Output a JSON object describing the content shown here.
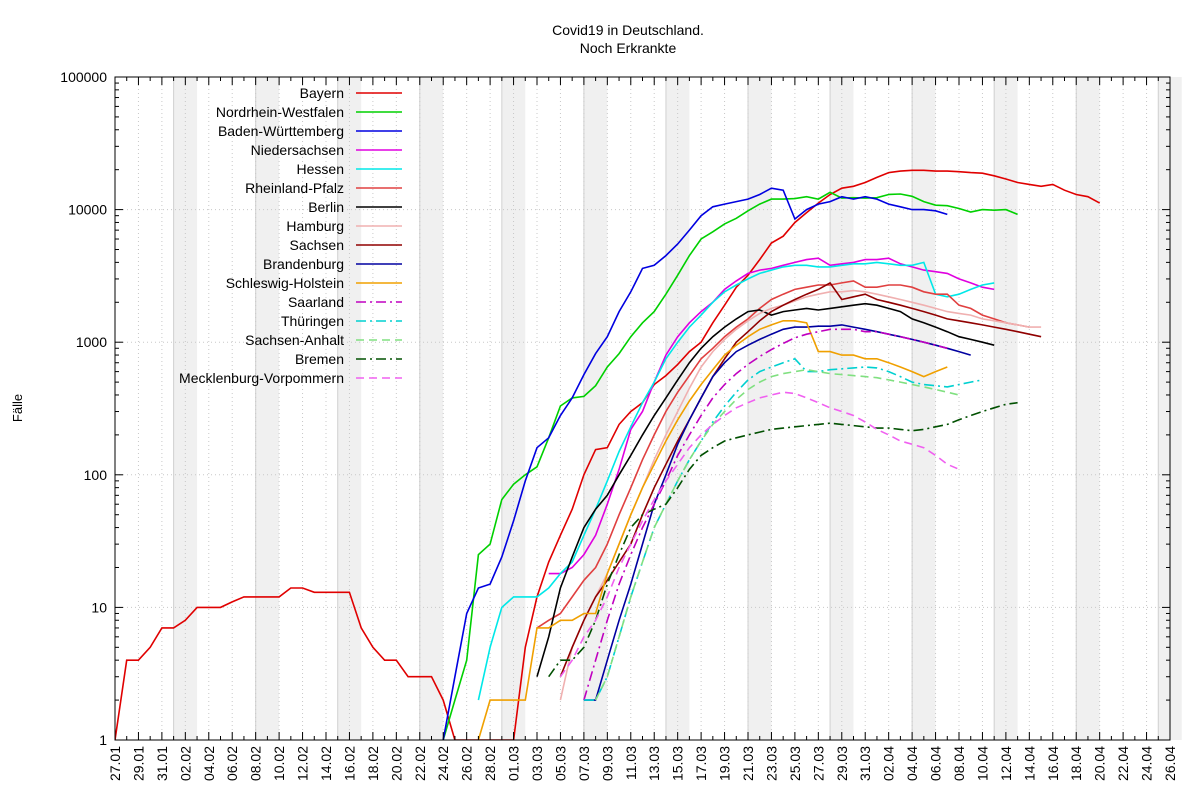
{
  "chart_data": {
    "type": "line",
    "title": "Covid19 in Deutschland.",
    "subtitle": "Noch Erkrankte",
    "xlabel": "",
    "ylabel": "Fälle",
    "yscale": "log",
    "ylim": [
      1,
      100000
    ],
    "y_ticks": [
      "1",
      "10",
      "100",
      "1000",
      "10000",
      "100000"
    ],
    "x_ticks": [
      "27.01",
      "29.01",
      "31.01",
      "02.02",
      "04.02",
      "06.02",
      "08.02",
      "10.02",
      "12.02",
      "14.02",
      "16.02",
      "18.02",
      "20.02",
      "22.02",
      "24.02",
      "26.02",
      "28.02",
      "01.03",
      "03.03",
      "05.03",
      "07.03",
      "09.03",
      "11.03",
      "13.03",
      "15.03",
      "17.03",
      "19.03",
      "21.03",
      "23.03",
      "25.03",
      "27.03",
      "29.03",
      "31.03",
      "02.04",
      "04.04",
      "06.04",
      "08.04",
      "10.04",
      "12.04",
      "14.04",
      "16.04",
      "18.04",
      "20.04",
      "22.04",
      "24.04",
      "26.04"
    ],
    "xlim": [
      "27.01",
      "26.04"
    ],
    "grid": true,
    "legend_position": "top-left",
    "weekend_shading": true,
    "series": [
      {
        "name": "Bayern",
        "color": "#e00000",
        "dash": "solid",
        "x_start": "27.01",
        "values": [
          1,
          4,
          4,
          5,
          7,
          7,
          8,
          10,
          10,
          10,
          11,
          12,
          12,
          12,
          12,
          14,
          14,
          13,
          13,
          13,
          13,
          7,
          5,
          4,
          4,
          3,
          3,
          3,
          2,
          1,
          1,
          1,
          1,
          1,
          1,
          5,
          12,
          22,
          35,
          55,
          100,
          155,
          160,
          240,
          300,
          350,
          480,
          560,
          680,
          850,
          1000,
          1400,
          1900,
          2600,
          3200,
          4200,
          5600,
          6300,
          8000,
          9500,
          11200,
          13000,
          14500,
          15000,
          16000,
          17500,
          19000,
          19500,
          19800,
          19800,
          19500,
          19500,
          19300,
          19000,
          18800,
          18000,
          17000,
          16000,
          15500,
          15000,
          15500,
          14000,
          13000,
          12500,
          11200
        ]
      },
      {
        "name": "Nordrhein-Westfalen",
        "color": "#00d000",
        "dash": "solid",
        "x_start": "24.02",
        "values": [
          1,
          2,
          4,
          25,
          30,
          65,
          85,
          100,
          115,
          190,
          330,
          380,
          390,
          470,
          650,
          820,
          1100,
          1400,
          1700,
          2300,
          3200,
          4500,
          6000,
          6800,
          7800,
          8600,
          9800,
          11000,
          12000,
          12000,
          12100,
          12500,
          12000,
          13500,
          12200,
          12300,
          12200,
          12300,
          13000,
          13100,
          12600,
          11500,
          10800,
          10700,
          10200,
          9600,
          10000,
          9900,
          10000,
          9200
        ]
      },
      {
        "name": "Baden-Württemberg",
        "color": "#0000e0",
        "dash": "solid",
        "x_start": "24.02",
        "values": [
          1,
          3,
          9,
          14,
          15,
          24,
          45,
          90,
          160,
          190,
          280,
          380,
          570,
          820,
          1100,
          1700,
          2400,
          3600,
          3800,
          4500,
          5500,
          7000,
          9000,
          10500,
          11000,
          11500,
          12000,
          13000,
          14500,
          14000,
          8500,
          10000,
          11000,
          11500,
          12500,
          12000,
          12500,
          12000,
          11000,
          10500,
          10000,
          10000,
          9800,
          9200
        ]
      },
      {
        "name": "Niedersachsen",
        "color": "#e000e0",
        "dash": "solid",
        "x_start": "04.03",
        "values": [
          18,
          18,
          20,
          25,
          35,
          60,
          110,
          220,
          300,
          500,
          800,
          1100,
          1400,
          1700,
          2000,
          2500,
          2900,
          3300,
          3500,
          3600,
          3800,
          4000,
          4200,
          4300,
          3800,
          3900,
          4000,
          4200,
          4200,
          4300,
          3900,
          3700,
          3500,
          3400,
          3300,
          3000,
          2800,
          2600,
          2500
        ]
      },
      {
        "name": "Hessen",
        "color": "#00e8e8",
        "dash": "solid",
        "x_start": "27.02",
        "values": [
          2,
          5,
          10,
          12,
          12,
          12,
          14,
          18,
          22,
          35,
          55,
          90,
          150,
          230,
          350,
          500,
          750,
          1000,
          1300,
          1600,
          2000,
          2400,
          2700,
          3000,
          3300,
          3500,
          3700,
          3800,
          3800,
          3700,
          3700,
          3800,
          3900,
          3900,
          4000,
          3900,
          3800,
          3800,
          4000,
          2300,
          2200,
          2300,
          2500,
          2700,
          2800
        ]
      },
      {
        "name": "Rheinland-Pfalz",
        "color": "#e04040",
        "dash": "solid",
        "x_start": "03.03",
        "values": [
          7,
          8,
          9,
          12,
          16,
          20,
          30,
          50,
          80,
          130,
          200,
          300,
          420,
          560,
          750,
          900,
          1100,
          1300,
          1500,
          1800,
          2100,
          2300,
          2500,
          2600,
          2700,
          2700,
          2800,
          2900,
          2600,
          2600,
          2700,
          2700,
          2600,
          2400,
          2300,
          2300,
          1900,
          1800,
          1600,
          1500,
          1400,
          1350,
          1300
        ]
      },
      {
        "name": "Berlin",
        "color": "#000000",
        "dash": "solid",
        "x_start": "03.03",
        "values": [
          3,
          6,
          14,
          24,
          40,
          55,
          70,
          100,
          140,
          200,
          280,
          380,
          520,
          700,
          900,
          1100,
          1300,
          1500,
          1700,
          1750,
          1600,
          1700,
          1750,
          1800,
          1750,
          1800,
          1850,
          1900,
          1950,
          1900,
          1800,
          1700,
          1500,
          1400,
          1300,
          1200,
          1100,
          1050,
          1000,
          950
        ]
      },
      {
        "name": "Hamburg",
        "color": "#f0b0b0",
        "dash": "solid",
        "x_start": "05.03",
        "values": [
          2,
          5,
          8,
          12,
          18,
          30,
          50,
          80,
          130,
          200,
          300,
          450,
          650,
          850,
          1050,
          1250,
          1450,
          1650,
          1800,
          1900,
          2050,
          2200,
          2300,
          2400,
          2400,
          2450,
          2400,
          2300,
          2200,
          2100,
          2000,
          1900,
          1800,
          1700,
          1650,
          1600,
          1500,
          1450,
          1400,
          1350,
          1300,
          1300
        ]
      },
      {
        "name": "Sachsen",
        "color": "#900000",
        "dash": "solid",
        "x_start": "05.03",
        "values": [
          3,
          5,
          8,
          12,
          16,
          22,
          30,
          50,
          80,
          120,
          180,
          260,
          380,
          550,
          750,
          1000,
          1200,
          1450,
          1700,
          1900,
          2100,
          2300,
          2500,
          2800,
          2100,
          2200,
          2300,
          2100,
          2000,
          1900,
          1800,
          1700,
          1600,
          1500,
          1450,
          1400,
          1350,
          1300,
          1250,
          1200,
          1150,
          1100
        ]
      },
      {
        "name": "Brandenburg",
        "color": "#0000a0",
        "dash": "solid",
        "x_start": "07.03",
        "values": [
          2,
          2,
          4,
          8,
          15,
          30,
          60,
          100,
          170,
          260,
          380,
          550,
          700,
          850,
          950,
          1050,
          1150,
          1250,
          1300,
          1300,
          1320,
          1320,
          1350,
          1300,
          1250,
          1200,
          1150,
          1100,
          1050,
          1000,
          950,
          900,
          850,
          800
        ]
      },
      {
        "name": "Schleswig-Holstein",
        "color": "#f0a000",
        "dash": "solid",
        "x_start": "27.02",
        "values": [
          1,
          2,
          2,
          2,
          2,
          7,
          7,
          8,
          8,
          9,
          9,
          18,
          30,
          50,
          80,
          120,
          180,
          260,
          360,
          480,
          620,
          800,
          950,
          1100,
          1250,
          1350,
          1450,
          1450,
          1400,
          850,
          850,
          800,
          800,
          750,
          750,
          700,
          650,
          600,
          550,
          600,
          650
        ]
      },
      {
        "name": "Saarland",
        "color": "#c000c0",
        "dash": "dashdot",
        "x_start": "07.03",
        "values": [
          2,
          4,
          8,
          15,
          25,
          40,
          60,
          90,
          140,
          200,
          280,
          380,
          480,
          580,
          680,
          780,
          880,
          980,
          1080,
          1150,
          1200,
          1250,
          1250,
          1250,
          1200,
          1200,
          1150,
          1100,
          1050,
          1000,
          950,
          900
        ]
      },
      {
        "name": "Thüringen",
        "color": "#00d0d0",
        "dash": "dashdot",
        "x_start": "07.03",
        "values": [
          2,
          2,
          3,
          6,
          12,
          22,
          40,
          60,
          90,
          130,
          180,
          250,
          330,
          420,
          520,
          600,
          650,
          700,
          750,
          600,
          600,
          620,
          630,
          640,
          650,
          640,
          600,
          550,
          500,
          480,
          470,
          460,
          480,
          500,
          520
        ]
      },
      {
        "name": "Sachsen-Anhalt",
        "color": "#80e080",
        "dash": "dash",
        "x_start": "08.03",
        "values": [
          2,
          3,
          6,
          12,
          22,
          40,
          60,
          90,
          130,
          180,
          240,
          300,
          370,
          440,
          500,
          550,
          580,
          600,
          620,
          600,
          580,
          570,
          560,
          550,
          540,
          520,
          500,
          480,
          460,
          440,
          420,
          400
        ]
      },
      {
        "name": "Bremen",
        "color": "#005000",
        "dash": "dashdot",
        "x_start": "04.03",
        "values": [
          3,
          4,
          4,
          5,
          8,
          15,
          25,
          40,
          50,
          55,
          60,
          80,
          110,
          140,
          160,
          180,
          190,
          200,
          210,
          220,
          225,
          230,
          235,
          240,
          245,
          240,
          235,
          230,
          225,
          225,
          220,
          215,
          220,
          230,
          240,
          260,
          280,
          300,
          320,
          340,
          350
        ]
      },
      {
        "name": "Mecklenburg-Vorpommern",
        "color": "#f060f0",
        "dash": "dash",
        "x_start": "05.03",
        "values": [
          3,
          4,
          6,
          8,
          12,
          20,
          30,
          45,
          65,
          90,
          120,
          160,
          200,
          240,
          280,
          320,
          350,
          380,
          400,
          420,
          410,
          380,
          350,
          320,
          300,
          280,
          250,
          220,
          200,
          180,
          170,
          160,
          140,
          120,
          110
        ]
      }
    ]
  }
}
